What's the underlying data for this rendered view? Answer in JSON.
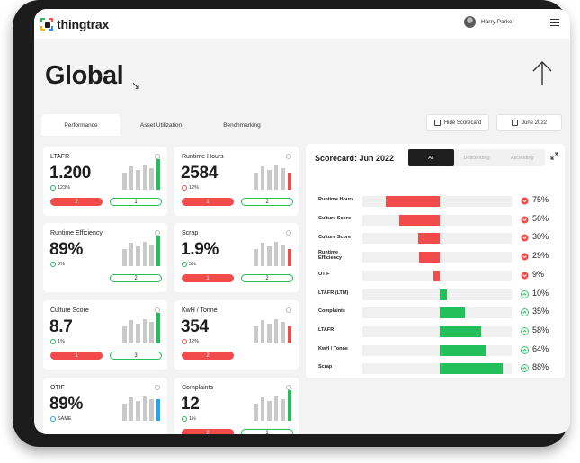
{
  "app": {
    "logo_text": "thingtrax"
  },
  "user": {
    "name": "Harry Parker"
  },
  "page": {
    "title": "Global"
  },
  "tabs": [
    {
      "label": "Performance",
      "active": true
    },
    {
      "label": "Asset Utilization",
      "active": false
    },
    {
      "label": "Benchmarking",
      "active": false
    }
  ],
  "actions": {
    "hide_scorecard": "Hide Scorecard",
    "date": "June 2022"
  },
  "colors": {
    "red": "#f24b4b",
    "green": "#22bf5a",
    "blue": "#1fa8f0",
    "grey": "#c9c9c9"
  },
  "kpis": [
    {
      "name": "LTAFR",
      "value": "1.200",
      "change": "123%",
      "trend": "up",
      "red_count": "2",
      "green_count": "1",
      "last_bar": "green",
      "bars": [
        0.55,
        0.75,
        0.65,
        0.8,
        0.7,
        1.0
      ]
    },
    {
      "name": "Runtime Hours",
      "value": "2584",
      "change": "12%",
      "trend": "down",
      "red_count": "1",
      "green_count": "2",
      "last_bar": "red",
      "bars": [
        0.55,
        0.75,
        0.65,
        0.8,
        0.7,
        0.55
      ]
    },
    {
      "name": "Runtime Efficiency",
      "value": "89%",
      "change": "8%",
      "trend": "up",
      "red_count": "",
      "green_count": "2",
      "last_bar": "green",
      "bars": [
        0.55,
        0.75,
        0.65,
        0.8,
        0.7,
        1.0
      ]
    },
    {
      "name": "Scrap",
      "value": "1.9%",
      "change": "5%",
      "trend": "up",
      "red_count": "1",
      "green_count": "2",
      "last_bar": "red",
      "bars": [
        0.55,
        0.75,
        0.65,
        0.8,
        0.7,
        0.55
      ]
    },
    {
      "name": "Culture Score",
      "value": "8.7",
      "change": "1%",
      "trend": "up",
      "red_count": "1",
      "green_count": "3",
      "last_bar": "green",
      "bars": [
        0.55,
        0.75,
        0.65,
        0.8,
        0.7,
        1.0
      ]
    },
    {
      "name": "KwH / Tonne",
      "value": "354",
      "change": "12%",
      "trend": "down",
      "red_count": "2",
      "green_count": "",
      "last_bar": "red",
      "bars": [
        0.55,
        0.75,
        0.65,
        0.8,
        0.7,
        0.55
      ]
    },
    {
      "name": "OTIF",
      "value": "89%",
      "change": "SAME",
      "trend": "same",
      "red_count": "",
      "green_count": "",
      "last_bar": "blue",
      "bars": [
        0.55,
        0.75,
        0.65,
        0.8,
        0.7,
        0.7
      ]
    },
    {
      "name": "Complaints",
      "value": "12",
      "change": "1%",
      "trend": "up",
      "red_count": "2",
      "green_count": "1",
      "last_bar": "green",
      "bars": [
        0.55,
        0.75,
        0.65,
        0.8,
        0.7,
        1.0
      ]
    }
  ],
  "scorecard": {
    "title": "Scorecard: Jun 2022",
    "sort_options": [
      "All",
      "Descending",
      "Ascending"
    ],
    "selected_sort": "All",
    "rows": [
      {
        "label": "Runtime Hours",
        "score": -75,
        "pct": "75%"
      },
      {
        "label": "Culture Score",
        "score": -56,
        "pct": "56%"
      },
      {
        "label": "Culture Score",
        "score": -30,
        "pct": "30%"
      },
      {
        "label": "Runtime Efficiency",
        "score": -29,
        "pct": "29%"
      },
      {
        "label": "OTIF",
        "score": -9,
        "pct": "9%"
      },
      {
        "label": "LTAFR (LTM)",
        "score": 10,
        "pct": "10%"
      },
      {
        "label": "Complaints",
        "score": 35,
        "pct": "35%"
      },
      {
        "label": "LTAFR",
        "score": 58,
        "pct": "58%"
      },
      {
        "label": "KwH / Tonne",
        "score": 64,
        "pct": "64%"
      },
      {
        "label": "Scrap",
        "score": 88,
        "pct": "88%"
      }
    ]
  }
}
